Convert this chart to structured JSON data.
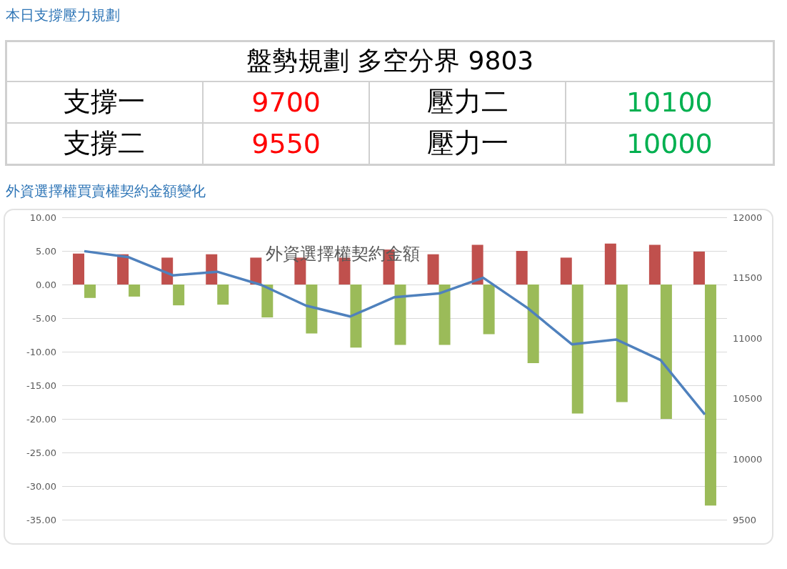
{
  "chart_data": [
    {
      "type": "other",
      "title": "本日支撐壓力規劃",
      "subtitle": "盤勢規劃 多空分界 9803",
      "annotations": [
        "支撐一",
        "9700",
        "壓力二",
        "10100",
        "支撐二",
        "9550",
        "壓力一",
        "10000"
      ],
      "colors": [
        "#000000",
        "#ff0000",
        "#000000",
        "#00b050",
        "#000000",
        "#ff0000",
        "#000000",
        "#00b050"
      ]
    },
    {
      "type": "bar",
      "subtitle": "外資選擇權買賣權契約金額變化",
      "title": "外資選擇權契約金額",
      "categories": [
        null,
        null,
        null,
        null,
        null,
        null,
        null,
        null,
        null,
        null,
        null,
        null,
        null,
        null,
        null
      ],
      "series": [
        {
          "color": "#c0504d",
          "values": [
            4.6,
            4.5,
            4.0,
            4.5,
            4.0,
            4.0,
            4.0,
            5.2,
            4.5,
            5.9,
            5.0,
            4.0,
            6.1,
            5.9,
            4.9
          ]
        },
        {
          "color": "#9bbb59",
          "values": [
            -2.0,
            -1.8,
            -3.1,
            -3.0,
            -4.9,
            -7.3,
            -9.4,
            -9.0,
            -9.0,
            -7.4,
            -11.7,
            -19.2,
            -17.5,
            -20.0,
            -32.9
          ]
        },
        {
          "type": "line",
          "axis": "y2",
          "color": "#4f81bd",
          "marker": "none",
          "line_style": "solid",
          "values": [
            11720,
            11670,
            11520,
            11550,
            11440,
            11270,
            11180,
            11340,
            11370,
            11500,
            11250,
            10950,
            10990,
            10820,
            10370
          ]
        }
      ],
      "ylim": [
        -35,
        10
      ],
      "yticks": [
        {
          "value": -35,
          "label": "-35.00"
        },
        {
          "value": -30,
          "label": "-30.00"
        },
        {
          "value": -25,
          "label": "-25.00"
        },
        {
          "value": -20,
          "label": "-20.00"
        },
        {
          "value": -15,
          "label": "-15.00"
        },
        {
          "value": -10,
          "label": "-10.00"
        },
        {
          "value": -5,
          "label": "-5.00"
        },
        {
          "value": 0,
          "label": "0.00"
        },
        {
          "value": 5,
          "label": "5.00"
        },
        {
          "value": 10,
          "label": "10.00"
        }
      ],
      "y2lim": [
        9500,
        12000
      ],
      "y2ticks": [
        9500,
        10000,
        10500,
        11000,
        11500,
        12000
      ],
      "grid": "y"
    }
  ]
}
